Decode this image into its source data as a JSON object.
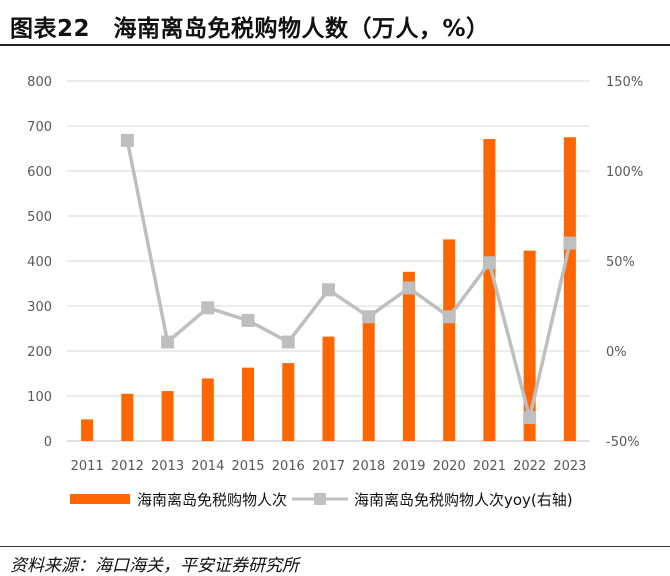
{
  "header": {
    "title": "图表22　海南离岛免税购物人数（万人，%）"
  },
  "footer": {
    "source": "资料来源：海口海关，平安证券研究所"
  },
  "colors": {
    "bar": "#FF6600",
    "line": "#BFBFBF",
    "axis_text": "#595959"
  },
  "chart_data": {
    "type": "bar+line",
    "categories": [
      "2011",
      "2012",
      "2013",
      "2014",
      "2015",
      "2016",
      "2017",
      "2018",
      "2019",
      "2020",
      "2021",
      "2022",
      "2023"
    ],
    "series": [
      {
        "name": "海南离岛免税购物人次",
        "kind": "bar",
        "axis": "left",
        "values": [
          48,
          105,
          111,
          139,
          163,
          173,
          232,
          288,
          376,
          448,
          671,
          423,
          675
        ]
      },
      {
        "name": "海南离岛免税购物人次yoy(右轴)",
        "kind": "line",
        "axis": "right",
        "values": [
          null,
          117,
          5,
          24,
          17,
          5,
          34,
          19,
          35,
          19,
          49,
          -37,
          60
        ]
      }
    ],
    "y_left": {
      "min": 0,
      "max": 800,
      "ticks": [
        "0",
        "100",
        "200",
        "300",
        "400",
        "500",
        "600",
        "700",
        "800"
      ]
    },
    "y_right": {
      "min": -50,
      "max": 150,
      "ticks": [
        "-50%",
        "0%",
        "50%",
        "100%",
        "150%"
      ]
    },
    "legend_position": "bottom",
    "grid": true
  }
}
